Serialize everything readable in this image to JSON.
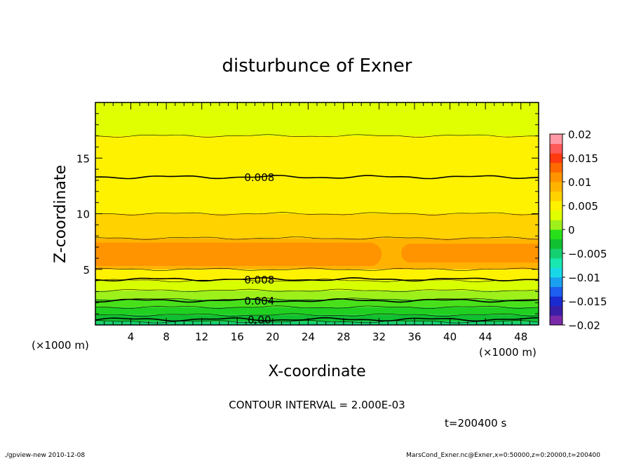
{
  "chart_data": {
    "type": "heatmap",
    "title": "disturbunce of Exner",
    "xlabel": "X-coordinate",
    "ylabel": "Z-coordinate",
    "x_unit_left": "(×1000 m)",
    "x_unit_right": "(×1000 m)",
    "xlim": [
      0,
      50
    ],
    "ylim": [
      0,
      20
    ],
    "x_ticks": [
      4,
      8,
      12,
      16,
      20,
      24,
      28,
      32,
      36,
      40,
      44,
      48
    ],
    "y_ticks": [
      5,
      10,
      15
    ],
    "colorbar": {
      "ticks": [
        "0.02",
        "0.015",
        "0.01",
        "0.005",
        "0",
        "−0.005",
        "−0.01",
        "−0.015",
        "−0.02"
      ],
      "range": [
        -0.02,
        0.02
      ],
      "colors": [
        "#7a2aa8",
        "#3a1ea8",
        "#1a2ad0",
        "#1e5ef0",
        "#1aa0f0",
        "#18d8e8",
        "#18e8b0",
        "#14d070",
        "#10c030",
        "#28e01a",
        "#9ef01a",
        "#e0ff00",
        "#fff200",
        "#ffd200",
        "#ffb300",
        "#ff9400",
        "#ff6a00",
        "#ff3a10",
        "#ff5a5a",
        "#ff9aa6"
      ]
    },
    "bands": [
      {
        "z_bottom": 0.0,
        "z_top": 0.3,
        "value": 0.0,
        "color": "#14d070"
      },
      {
        "z_bottom": 0.3,
        "z_top": 0.9,
        "value": 0.001,
        "color": "#10c030"
      },
      {
        "z_bottom": 0.9,
        "z_top": 1.6,
        "value": 0.002,
        "color": "#20d020"
      },
      {
        "z_bottom": 1.6,
        "z_top": 2.3,
        "value": 0.003,
        "color": "#48e01a"
      },
      {
        "z_bottom": 2.3,
        "z_top": 3.1,
        "value": 0.004,
        "color": "#9ef01a"
      },
      {
        "z_bottom": 3.1,
        "z_top": 4.0,
        "value": 0.005,
        "color": "#d8ff00"
      },
      {
        "z_bottom": 4.0,
        "z_top": 5.0,
        "value": 0.006,
        "color": "#fff200"
      },
      {
        "z_bottom": 5.0,
        "z_top": 7.8,
        "value": 0.01,
        "color": "#ffb300"
      },
      {
        "z_bottom": 7.8,
        "z_top": 10.0,
        "value": 0.009,
        "color": "#ffd200"
      },
      {
        "z_bottom": 10.0,
        "z_top": 17.0,
        "value": 0.007,
        "color": "#fff200"
      },
      {
        "z_bottom": 17.0,
        "z_top": 20.0,
        "value": 0.005,
        "color": "#e0ff00"
      }
    ],
    "core_segments": [
      {
        "x_start": 0.0,
        "x_end": 32.3,
        "z_bottom": 5.3,
        "z_top": 7.4,
        "value": 0.011,
        "color": "#ff9400"
      },
      {
        "x_start": 34.5,
        "x_end": 50.0,
        "z_bottom": 5.6,
        "z_top": 7.3,
        "value": 0.011,
        "color": "#ff9400"
      }
    ],
    "contours": [
      {
        "level": "0.008",
        "z": 13.3,
        "label_x": 18.5
      },
      {
        "level": "0.008",
        "z": 4.1,
        "label_x": 18.5
      },
      {
        "level": "0.004",
        "z": 2.2,
        "label_x": 18.5
      },
      {
        "level": "0.00",
        "z": 0.5,
        "label_x": 18.5
      }
    ],
    "contour_interval": "CONTOUR INTERVAL = 2.000E-03",
    "time_label": "t=200400 s"
  },
  "footer": {
    "left": "./gpview-new   2010-12-08",
    "right": "MarsCond_Exner.nc@Exner,x=0:50000,z=0:20000,t=200400"
  }
}
